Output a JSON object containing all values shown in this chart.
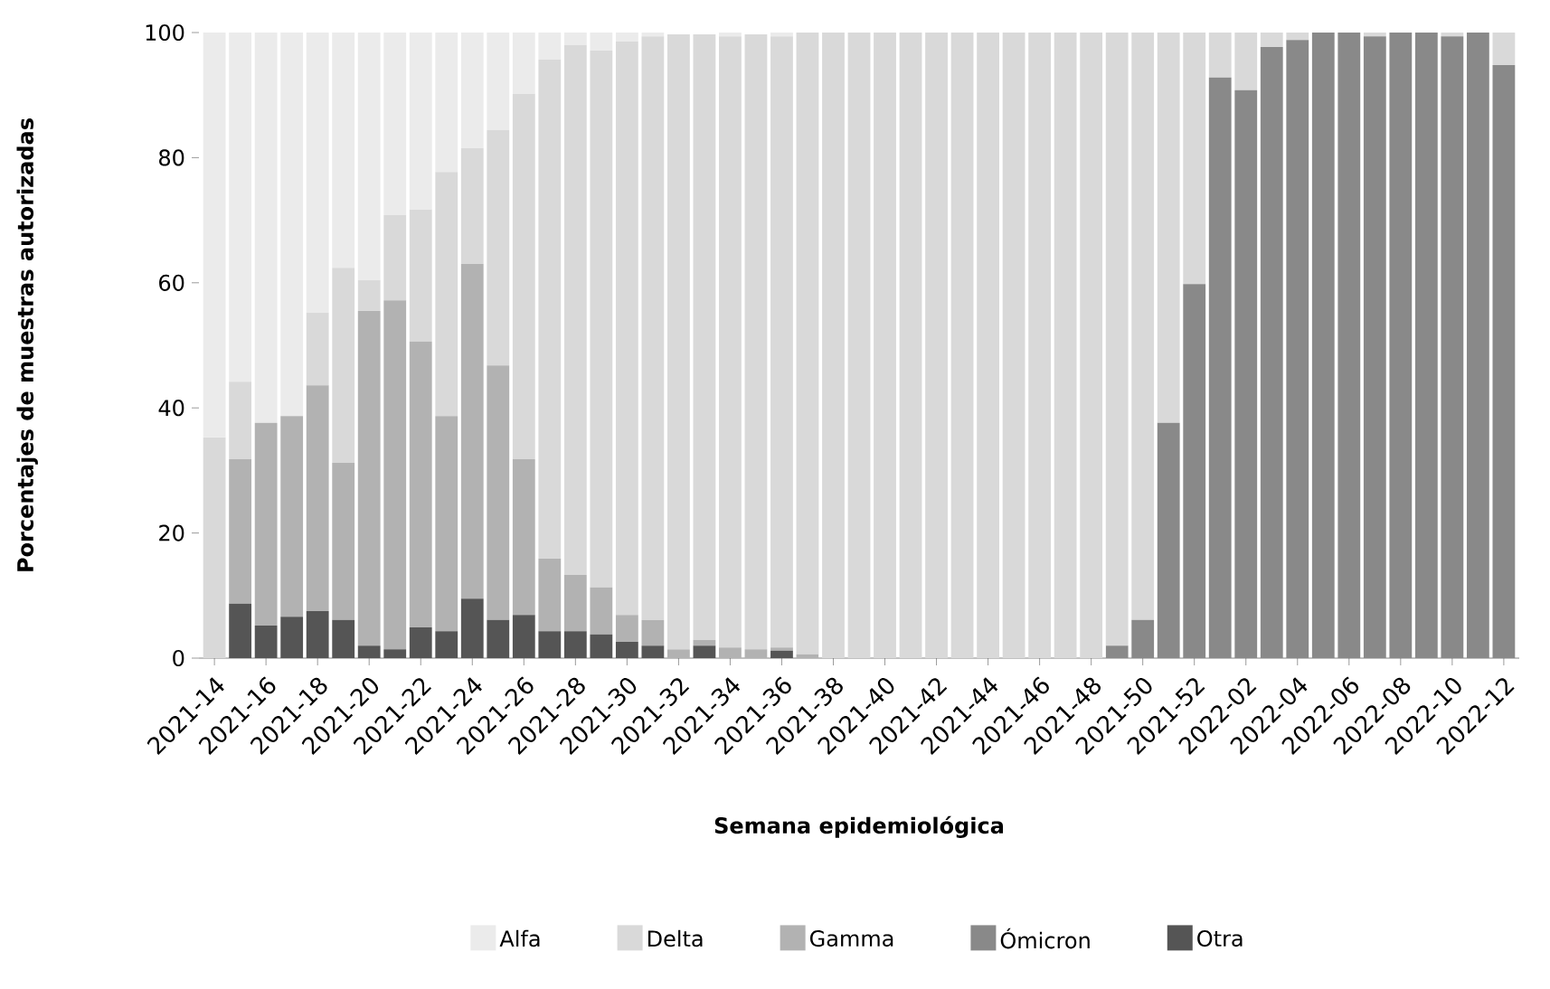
{
  "chart_data": {
    "type": "bar",
    "stacked": true,
    "xlabel": "Semana epidemiológica",
    "ylabel": "Porcentajes de muestras autorizadas",
    "ylim": [
      0,
      100
    ],
    "yticks": [
      0,
      20,
      40,
      60,
      80,
      100
    ],
    "legend": "bottom",
    "categories": [
      "2021-14",
      null,
      "2021-16",
      null,
      "2021-18",
      null,
      "2021-20",
      null,
      "2021-22",
      null,
      "2021-24",
      null,
      "2021-26",
      null,
      "2021-28",
      null,
      "2021-30",
      null,
      "2021-32",
      null,
      "2021-34",
      null,
      "2021-36",
      null,
      "2021-38",
      null,
      "2021-40",
      null,
      "2021-42",
      null,
      "2021-44",
      null,
      "2021-46",
      null,
      "2021-48",
      null,
      "2021-50",
      null,
      "2021-52",
      null,
      "2022-02",
      null,
      "2022-04",
      null,
      "2022-06",
      null,
      "2022-08",
      null,
      "2022-10",
      null,
      "2022-12"
    ],
    "series": [
      {
        "name": "Otra",
        "color": "#555555",
        "values": [
          0,
          8.7,
          5.2,
          6.6,
          7.5,
          6.1,
          2.0,
          1.4,
          4.9,
          4.3,
          9.5,
          6.1,
          6.9,
          4.3,
          4.3,
          3.8,
          2.6,
          2.0,
          0,
          2.0,
          0,
          0,
          1.2,
          0,
          0,
          0,
          0,
          0,
          0,
          0,
          0,
          0,
          0,
          0,
          0,
          0,
          0,
          0,
          0,
          0,
          0,
          0,
          0,
          0,
          0,
          0,
          0,
          0,
          0,
          0,
          0
        ]
      },
      {
        "name": "Ómicron",
        "color": "#898989",
        "values": [
          0,
          0,
          0,
          0,
          0,
          0,
          0,
          0,
          0,
          0,
          0,
          0,
          0,
          0,
          0,
          0,
          0,
          0,
          0,
          0,
          0,
          0,
          0,
          0,
          0,
          0,
          0,
          0,
          0,
          0,
          0,
          0,
          0,
          0,
          0,
          2.0,
          6.1,
          37.6,
          59.8,
          92.8,
          90.8,
          97.7,
          98.8,
          100,
          100,
          99.4,
          100,
          100,
          99.4,
          100,
          94.8
        ]
      },
      {
        "name": "Gamma",
        "color": "#b2b2b2",
        "values": [
          0,
          23.1,
          32.4,
          32.1,
          36.1,
          25.1,
          53.5,
          55.8,
          45.7,
          34.4,
          53.5,
          40.7,
          24.9,
          11.6,
          9.0,
          7.5,
          4.3,
          4.1,
          1.4,
          0.9,
          1.7,
          1.4,
          0.5,
          0.6,
          0,
          0,
          0,
          0,
          0,
          0,
          0,
          0,
          0,
          0,
          0,
          0,
          0,
          0,
          0,
          0,
          0,
          0,
          0,
          0,
          0,
          0,
          0,
          0,
          0,
          0,
          0
        ]
      },
      {
        "name": "Delta",
        "color": "#d9d9d9",
        "values": [
          35.3,
          12.4,
          0,
          0,
          11.6,
          31.2,
          4.9,
          13.6,
          21.1,
          39.0,
          18.5,
          37.6,
          58.4,
          79.8,
          84.7,
          85.8,
          91.7,
          93.3,
          98.3,
          96.8,
          97.7,
          98.3,
          97.7,
          99.4,
          100,
          100,
          100,
          100,
          100,
          100,
          100,
          100,
          100,
          100,
          100,
          98.0,
          93.9,
          62.4,
          40.2,
          7.2,
          9.2,
          2.3,
          1.2,
          0,
          0,
          0.6,
          0,
          0,
          0.6,
          0,
          5.2
        ]
      },
      {
        "name": "Alfa",
        "color": "#ebebeb",
        "values": [
          64.7,
          55.8,
          62.4,
          61.3,
          44.8,
          37.6,
          39.6,
          29.2,
          28.3,
          22.3,
          18.5,
          15.6,
          9.8,
          4.3,
          2.0,
          2.9,
          1.4,
          0.6,
          null,
          null,
          0.6,
          null,
          0.6,
          0,
          0,
          0,
          0,
          0,
          0,
          0,
          0,
          0,
          0,
          0,
          0,
          0,
          0,
          0,
          0,
          0,
          0,
          0,
          0,
          0,
          0,
          0,
          0,
          0,
          0,
          0,
          0
        ]
      }
    ]
  }
}
